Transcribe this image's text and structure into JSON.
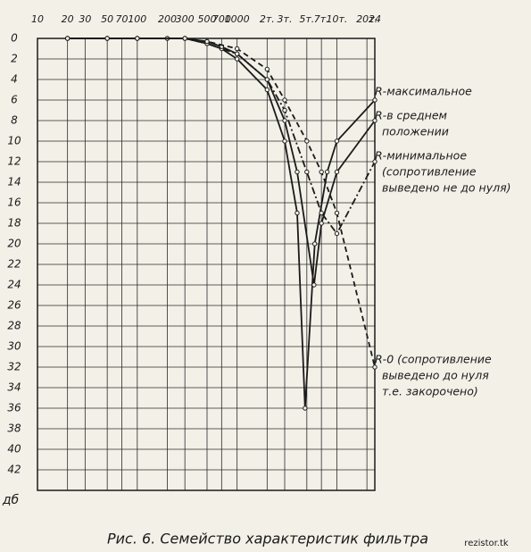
{
  "chart_data": {
    "type": "line",
    "caption": "Рис. 6. Семейство характеристик фильтра",
    "watermark": "rezistor.tk",
    "y_unit": "дб",
    "log_x": true,
    "invert_y": true,
    "grid": true,
    "xlim": [
      10,
      24000
    ],
    "xticks": [
      10,
      20,
      30,
      50,
      70,
      100,
      200,
      300,
      500,
      700,
      1000,
      {
        "value": 2000,
        "label": "2т."
      },
      {
        "value": 3000,
        "label": "3т."
      },
      {
        "value": 5000,
        "label": "5т."
      },
      {
        "value": 7000,
        "label": "7т."
      },
      {
        "value": 10000,
        "label": "10т."
      },
      {
        "value": 20000,
        "label": "20т."
      },
      {
        "value": 24000,
        "label": "24"
      }
    ],
    "ylim": [
      0,
      44
    ],
    "yticks": [
      0,
      2,
      4,
      6,
      8,
      10,
      12,
      14,
      16,
      18,
      20,
      22,
      24,
      26,
      28,
      30,
      32,
      34,
      36,
      38,
      40,
      42
    ],
    "series": [
      {
        "name": "R-максимальное",
        "note": [],
        "color": "#1a1a1a",
        "style": "solid",
        "x": [
          20,
          50,
          100,
          200,
          300,
          500,
          700,
          1000,
          2000,
          3000,
          4000,
          4800,
          6000,
          8000,
          10000,
          24000
        ],
        "values": [
          0,
          0,
          0,
          0,
          0,
          0.5,
          1,
          2,
          5,
          10,
          17,
          36,
          20,
          13,
          10,
          6
        ]
      },
      {
        "name": "R-в среднем",
        "note": [
          "положении"
        ],
        "color": "#1a1a1a",
        "style": "solid",
        "x": [
          20,
          50,
          100,
          200,
          300,
          500,
          700,
          1000,
          2000,
          3000,
          4000,
          5900,
          7000,
          10000,
          24000
        ],
        "values": [
          0,
          0,
          0,
          0,
          0,
          0.3,
          0.8,
          1.5,
          4,
          8,
          13,
          24,
          18,
          13,
          8
        ]
      },
      {
        "name": "R-минимальное",
        "note": [
          "(сопротивление",
          "выведено не до нуля)"
        ],
        "color": "#1a1a1a",
        "style": "dashdot",
        "x": [
          20,
          50,
          100,
          300,
          500,
          1000,
          2000,
          3000,
          5000,
          7000,
          10000,
          24000
        ],
        "values": [
          0,
          0,
          0,
          0,
          0.5,
          1.5,
          4,
          7,
          13,
          17,
          19,
          12
        ]
      },
      {
        "name": "R-0 (сопротивление",
        "note": [
          "выведено до нуля",
          "т.е. закорочено)"
        ],
        "color": "#1a1a1a",
        "style": "dashed",
        "x": [
          20,
          50,
          100,
          300,
          500,
          1000,
          2000,
          3000,
          5000,
          7000,
          10000,
          24000
        ],
        "values": [
          0,
          0,
          0,
          0,
          0.3,
          1,
          3,
          6,
          10,
          13,
          17,
          32
        ]
      }
    ]
  }
}
